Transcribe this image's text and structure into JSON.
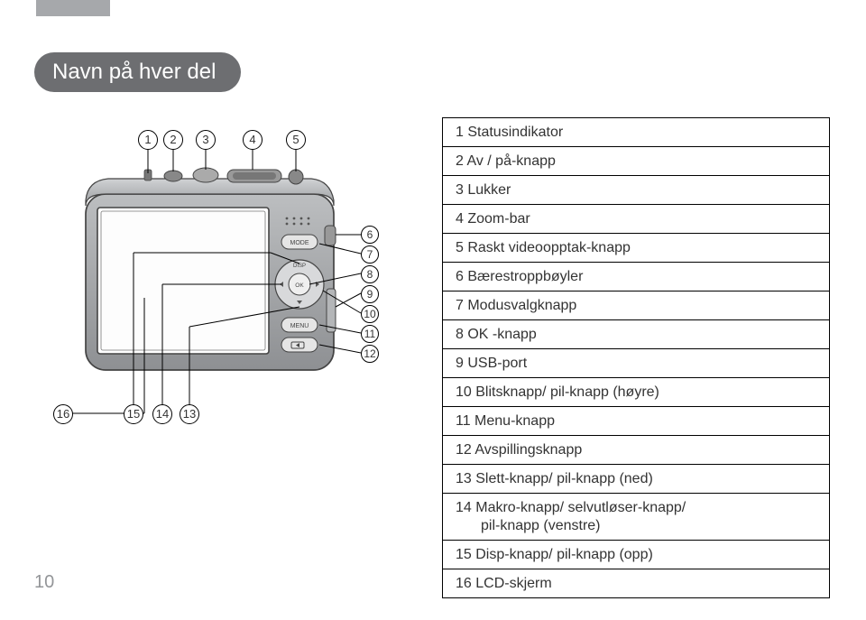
{
  "page_number": "10",
  "title": "Navn på hver del",
  "parts": [
    {
      "n": "1",
      "label": "Statusindikator"
    },
    {
      "n": "2",
      "label": "Av / på-knapp"
    },
    {
      "n": "3",
      "label": "Lukker"
    },
    {
      "n": "4",
      "label": "Zoom-bar"
    },
    {
      "n": "5",
      "label": "Raskt videoopptak-knapp"
    },
    {
      "n": "6",
      "label": "Bærestroppbøyler"
    },
    {
      "n": "7",
      "label": "Modusvalgknapp"
    },
    {
      "n": "8",
      "label": "OK -knapp"
    },
    {
      "n": "9",
      "label": "USB-port"
    },
    {
      "n": "10",
      "label": "Blitsknapp/ pil-knapp (høyre)"
    },
    {
      "n": "11",
      "label": "Menu-knapp"
    },
    {
      "n": "12",
      "label": "Avspillingsknapp"
    },
    {
      "n": "13",
      "label": "Slett-knapp/ pil-knapp (ned)"
    },
    {
      "n": "14",
      "label": "Makro-knapp/ selvutløser-knapp/",
      "sub": "pil-knapp (venstre)"
    },
    {
      "n": "15",
      "label": "Disp-knapp/ pil-knapp (opp)"
    },
    {
      "n": "16",
      "label": "LCD-skjerm"
    }
  ],
  "top_callouts": [
    "1",
    "2",
    "3",
    "4",
    "5"
  ],
  "right_callouts": [
    "6",
    "7",
    "8",
    "9",
    "10",
    "11",
    "12"
  ],
  "bottom_callouts": [
    "16",
    "15",
    "14",
    "13"
  ],
  "colors": {
    "top_bar": "#a6a8ab",
    "title_bg": "#6d6e71",
    "title_text": "#ffffff",
    "text": "#333333",
    "page_num": "#939598",
    "border": "#000000",
    "camera_body": "#9d9fa2",
    "camera_body_light": "#bcbec0",
    "screen_fill": "#ffffff"
  }
}
